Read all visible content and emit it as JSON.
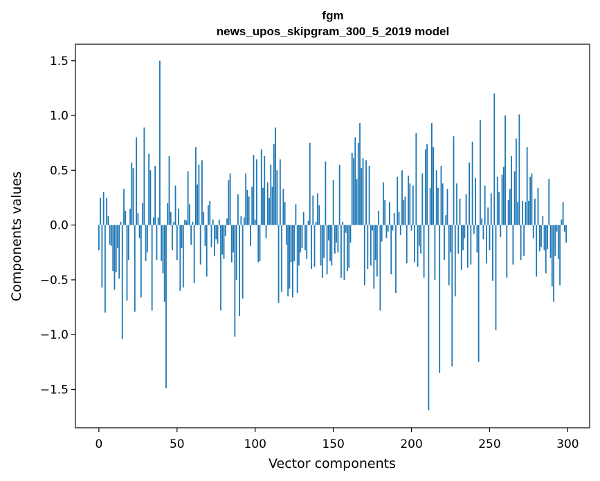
{
  "chart_data": {
    "type": "bar",
    "title": "fgm",
    "subtitle": "news_upos_skipgram_300_5_2019 model",
    "xlabel": "Vector components",
    "ylabel": "Components values",
    "xlim": [
      -15,
      314
    ],
    "ylim": [
      -1.85,
      1.65
    ],
    "xticks": [
      0,
      50,
      100,
      150,
      200,
      250,
      300
    ],
    "xtick_labels": [
      "0",
      "50",
      "100",
      "150",
      "200",
      "250",
      "300"
    ],
    "yticks": [
      -1.5,
      -1.0,
      -0.5,
      0.0,
      0.5,
      1.0,
      1.5
    ],
    "ytick_labels": [
      "−1.5",
      "−1.0",
      "−0.5",
      "0.0",
      "0.5",
      "1.0",
      "1.5"
    ],
    "bar_color": "#1f77b4",
    "x_start": 0,
    "values": [
      -0.23,
      0.25,
      -0.57,
      0.3,
      -0.8,
      0.25,
      0.08,
      -0.18,
      -0.19,
      -0.42,
      -0.59,
      -0.43,
      -0.21,
      -0.49,
      0.03,
      -1.04,
      0.33,
      0.13,
      -0.69,
      -0.32,
      0.15,
      0.57,
      0.52,
      -0.79,
      0.8,
      0.11,
      -0.12,
      -0.66,
      0.2,
      0.89,
      -0.33,
      -0.25,
      0.65,
      0.5,
      -0.78,
      0.07,
      0.54,
      -0.32,
      0.07,
      1.5,
      -0.33,
      -0.44,
      -0.7,
      -1.49,
      0.2,
      0.63,
      0.12,
      -0.23,
      0.03,
      0.36,
      -0.32,
      0.15,
      -0.6,
      -0.21,
      -0.57,
      0.05,
      0.04,
      0.49,
      0.19,
      -0.18,
      0.03,
      -0.53,
      0.71,
      0.37,
      0.55,
      -0.36,
      0.59,
      0.12,
      -0.19,
      -0.47,
      0.18,
      0.22,
      -0.2,
      0.05,
      -0.28,
      -0.13,
      -0.17,
      0.05,
      -0.78,
      -0.27,
      -0.31,
      -0.1,
      0.06,
      0.41,
      0.47,
      -0.34,
      -0.25,
      -1.02,
      -0.5,
      0.28,
      -0.83,
      0.08,
      -0.67,
      0.07,
      0.47,
      0.32,
      0.26,
      -0.19,
      0.35,
      0.64,
      0.05,
      0.6,
      -0.34,
      -0.33,
      0.69,
      0.34,
      0.63,
      -0.12,
      0.39,
      0.25,
      0.55,
      0.35,
      0.74,
      0.89,
      0.5,
      -0.71,
      0.6,
      -0.61,
      0.33,
      0.21,
      -0.18,
      -0.65,
      -0.58,
      -0.34,
      -0.66,
      -0.33,
      0.19,
      -0.62,
      -0.37,
      -0.25,
      -0.21,
      0.12,
      -0.23,
      -0.31,
      0.04,
      0.75,
      -0.4,
      0.27,
      -0.38,
      0.03,
      0.29,
      0.18,
      -0.37,
      -0.48,
      -0.3,
      0.58,
      -0.45,
      -0.14,
      -0.33,
      -0.37,
      0.41,
      -0.26,
      -0.16,
      -0.25,
      0.55,
      -0.48,
      0.03,
      -0.5,
      -0.07,
      -0.42,
      -0.39,
      -0.16,
      0.66,
      0.61,
      0.8,
      0.42,
      0.75,
      0.93,
      0.52,
      0.61,
      -0.55,
      0.59,
      -0.4,
      0.54,
      -0.37,
      -0.05,
      -0.58,
      -0.32,
      -0.47,
      0.13,
      -0.78,
      -0.15,
      0.39,
      0.23,
      -0.12,
      -0.06,
      0.21,
      -0.45,
      -0.05,
      0.11,
      -0.62,
      0.44,
      0.12,
      -0.09,
      0.5,
      0.23,
      0.26,
      -0.35,
      0.45,
      0.38,
      -0.05,
      0.36,
      -0.34,
      0.84,
      -0.38,
      -0.19,
      -0.26,
      0.47,
      -0.48,
      0.69,
      0.74,
      -1.69,
      0.34,
      0.93,
      0.71,
      -0.5,
      0.5,
      0.34,
      -1.35,
      0.54,
      0.38,
      -0.32,
      0.09,
      0.33,
      -0.55,
      -0.25,
      -1.29,
      0.81,
      -0.65,
      0.38,
      -0.26,
      0.24,
      -0.41,
      -0.23,
      -0.12,
      0.28,
      -0.39,
      0.57,
      -0.36,
      0.76,
      -0.08,
      0.43,
      -0.25,
      -1.25,
      0.96,
      0.06,
      -0.13,
      0.36,
      -0.35,
      0.16,
      -0.23,
      0.29,
      -0.51,
      1.2,
      -0.96,
      0.44,
      0.3,
      -0.11,
      0.46,
      0.53,
      1.0,
      -0.48,
      0.23,
      0.33,
      0.63,
      -0.36,
      0.49,
      0.79,
      0.21,
      1.01,
      -0.32,
      0.22,
      -0.28,
      0.21,
      0.71,
      0.22,
      0.44,
      0.47,
      -0.12,
      0.24,
      -0.47,
      0.34,
      -0.24,
      -0.2,
      0.08,
      -0.23,
      -0.44,
      -0.22,
      0.42,
      -0.3,
      -0.56,
      -0.7,
      -0.28,
      -0.06,
      -0.31,
      -0.55,
      0.05,
      0.21,
      -0.06,
      -0.16
    ]
  }
}
